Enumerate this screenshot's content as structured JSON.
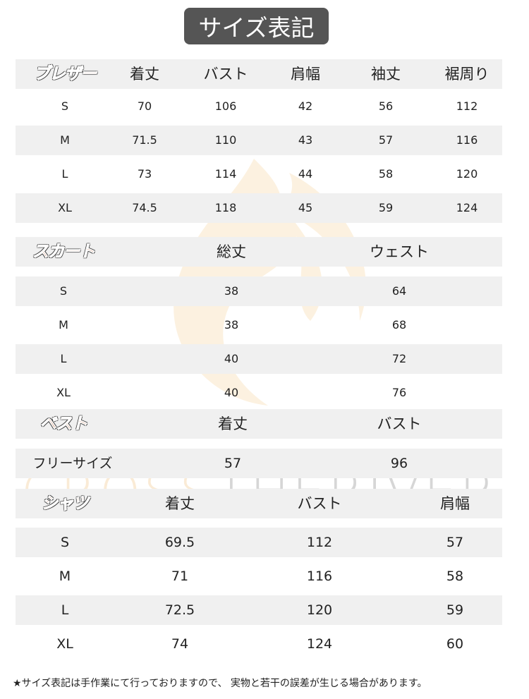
{
  "title": "サイズ表記",
  "watermark": "CrossTheRiver",
  "blazer": {
    "label": "ブレザー",
    "headers": [
      "着丈",
      "バスト",
      "肩幅",
      "袖丈",
      "裾周り"
    ],
    "rows": [
      [
        "S",
        "70",
        "106",
        "42",
        "56",
        "112"
      ],
      [
        "M",
        "71.5",
        "110",
        "43",
        "57",
        "116"
      ],
      [
        "L",
        "73",
        "114",
        "44",
        "58",
        "120"
      ],
      [
        "XL",
        "74.5",
        "118",
        "45",
        "59",
        "124"
      ]
    ]
  },
  "skirt": {
    "label": "スカート",
    "headers": [
      "総丈",
      "ウェスト"
    ],
    "rows": [
      [
        "S",
        "38",
        "64"
      ],
      [
        "M",
        "38",
        "68"
      ],
      [
        "L",
        "40",
        "72"
      ],
      [
        "XL",
        "40",
        "76"
      ]
    ]
  },
  "vest": {
    "label": "ベスト",
    "headers": [
      "着丈",
      "バスト"
    ],
    "rows": [
      [
        "フリーサイズ",
        "57",
        "96"
      ]
    ]
  },
  "shirt": {
    "label": "シャツ",
    "headers": [
      "着丈",
      "バスト",
      "肩幅"
    ],
    "rows": [
      [
        "S",
        "69.5",
        "112",
        "57"
      ],
      [
        "M",
        "71",
        "116",
        "58"
      ],
      [
        "L",
        "72.5",
        "120",
        "59"
      ],
      [
        "XL",
        "74",
        "124",
        "60"
      ]
    ]
  },
  "note": "★サイズ表記は手作業にて行っておりますので、 実物と若干の誤差が生じる場合があります。"
}
